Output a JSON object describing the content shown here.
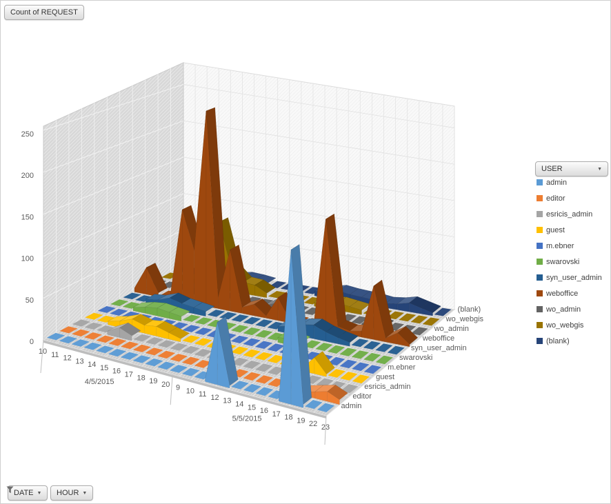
{
  "window": {
    "background": "#ffffff",
    "border_color": "#cfcfcf"
  },
  "icons": {
    "chevron_down": "▼"
  },
  "pivot_buttons": {
    "value_button": "Count of REQUEST",
    "legend_button": "USER",
    "date_button": "DATE",
    "hour_button": "HOUR"
  },
  "legend": {
    "title": "USER",
    "position": "right"
  },
  "chart_data": {
    "type": "area",
    "subtype": "3d-area",
    "title": "Count of REQUEST",
    "value_axis": {
      "min": 0,
      "max": 280,
      "major_unit": 50,
      "tick_labels": [
        0,
        50,
        100,
        150,
        200,
        250
      ]
    },
    "category_axis": {
      "groups": [
        {
          "label": "4/5/2015",
          "hours": [
            "10",
            "11",
            "12",
            "13",
            "14",
            "15",
            "16",
            "17",
            "18",
            "19",
            "20"
          ]
        },
        {
          "label": "5/5/2015",
          "hours": [
            "9",
            "10",
            "11",
            "12",
            "13",
            "14",
            "15",
            "16",
            "17",
            "18",
            "19",
            "22",
            "23"
          ]
        }
      ]
    },
    "grid": true,
    "legend_position": "right",
    "walls": {
      "side": "#d8d8d8",
      "back": "#f9f9f9",
      "floor": "#cdcdcd"
    },
    "series": [
      {
        "name": "admin",
        "color": "#5B9BD5",
        "values": [
          2,
          2,
          2,
          2,
          3,
          2,
          2,
          2,
          2,
          2,
          2,
          2,
          3,
          2,
          75,
          3,
          2,
          2,
          2,
          2,
          185,
          4,
          3,
          2
        ]
      },
      {
        "name": "editor",
        "color": "#ED7D31",
        "values": [
          3,
          3,
          3,
          3,
          4,
          4,
          3,
          3,
          3,
          3,
          3,
          3,
          3,
          3,
          4,
          5,
          4,
          3,
          3,
          3,
          4,
          8,
          12,
          6
        ]
      },
      {
        "name": "esricis_admin",
        "color": "#A5A5A5",
        "values": [
          2,
          2,
          3,
          4,
          12,
          6,
          3,
          2,
          2,
          2,
          2,
          2,
          2,
          3,
          5,
          4,
          3,
          2,
          2,
          6,
          3,
          2,
          2,
          2
        ]
      },
      {
        "name": "guest",
        "color": "#FFC000",
        "values": [
          2,
          3,
          4,
          8,
          14,
          10,
          12,
          8,
          4,
          3,
          2,
          2,
          2,
          3,
          3,
          4,
          4,
          3,
          3,
          20,
          3,
          2,
          2,
          2
        ]
      },
      {
        "name": "m.ebner",
        "color": "#4472C4",
        "values": [
          2,
          2,
          2,
          3,
          4,
          4,
          3,
          3,
          2,
          2,
          2,
          2,
          2,
          3,
          4,
          4,
          3,
          3,
          2,
          2,
          2,
          2,
          2,
          2
        ]
      },
      {
        "name": "swarovski",
        "color": "#70AD47",
        "values": [
          2,
          3,
          4,
          8,
          10,
          8,
          6,
          4,
          3,
          2,
          2,
          2,
          3,
          4,
          6,
          8,
          6,
          4,
          3,
          2,
          2,
          2,
          2,
          2
        ]
      },
      {
        "name": "syn_user_admin",
        "color": "#255E91",
        "values": [
          3,
          4,
          6,
          8,
          14,
          10,
          8,
          6,
          4,
          3,
          3,
          3,
          4,
          6,
          10,
          15,
          18,
          12,
          8,
          5,
          3,
          3,
          2,
          2
        ]
      },
      {
        "name": "weboffice",
        "color": "#9E480E",
        "values": [
          5,
          35,
          5,
          5,
          120,
          70,
          255,
          15,
          80,
          8,
          15,
          3,
          30,
          4,
          4,
          5,
          145,
          8,
          5,
          8,
          70,
          5,
          15,
          3
        ]
      },
      {
        "name": "wo_admin",
        "color": "#636363",
        "values": [
          3,
          4,
          4,
          5,
          8,
          6,
          5,
          4,
          3,
          3,
          3,
          10,
          4,
          3,
          4,
          5,
          4,
          3,
          3,
          8,
          4,
          3,
          2,
          2
        ]
      },
      {
        "name": "wo_webgis",
        "color": "#997300",
        "values": [
          3,
          4,
          5,
          8,
          20,
          90,
          30,
          15,
          14,
          6,
          4,
          3,
          4,
          5,
          8,
          10,
          8,
          6,
          4,
          3,
          3,
          3,
          2,
          2
        ]
      },
      {
        "name": "(blank)",
        "color": "#264478",
        "values": [
          2,
          3,
          4,
          5,
          8,
          6,
          9,
          8,
          6,
          5,
          4,
          5,
          6,
          8,
          12,
          10,
          9,
          8,
          6,
          8,
          12,
          8,
          4,
          3
        ]
      }
    ]
  }
}
